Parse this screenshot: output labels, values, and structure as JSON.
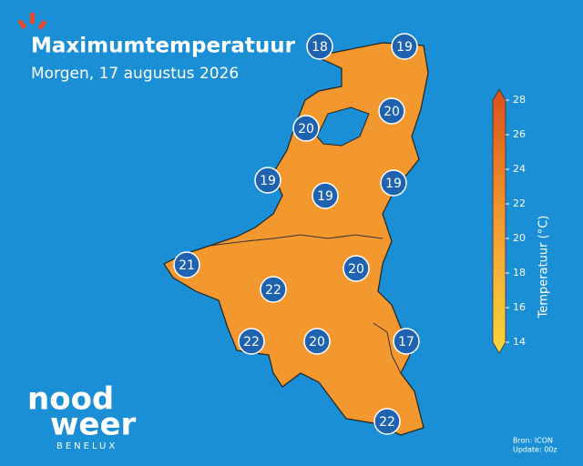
{
  "header": {
    "title": "Maximumtemperatuur",
    "subtitle": "Morgen, 17 augustus 2026"
  },
  "map": {
    "points": [
      {
        "value": 18
      },
      {
        "value": 19
      },
      {
        "value": 20
      },
      {
        "value": 20
      },
      {
        "value": 19
      },
      {
        "value": 19
      },
      {
        "value": 19
      },
      {
        "value": 21
      },
      {
        "value": 20
      },
      {
        "value": 22
      },
      {
        "value": 22
      },
      {
        "value": 20
      },
      {
        "value": 17
      },
      {
        "value": 22
      }
    ]
  },
  "colorbar": {
    "label": "Temperatuur (°C)",
    "range": [
      14,
      28
    ],
    "ticks": [
      14,
      16,
      18,
      20,
      22,
      24,
      26,
      28
    ]
  },
  "logo": {
    "line1": "nood",
    "line2": "weer",
    "line3": "BENELUX"
  },
  "footer": {
    "source": "Bron: ICON",
    "update": "Update: 00z"
  }
}
